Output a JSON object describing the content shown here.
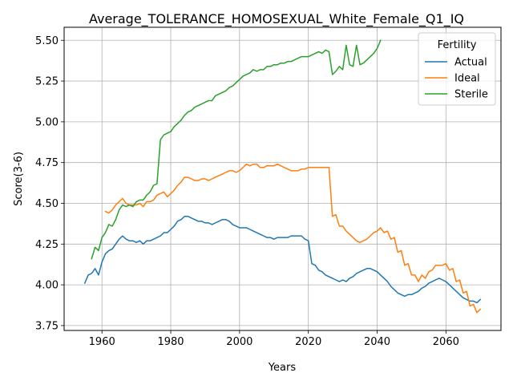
{
  "chart_data": {
    "type": "line",
    "title": "Average_TOLERANCE_HOMOSEXUAL_White_Female_Q1_IQ",
    "xlabel": "Years",
    "ylabel": "Score(3-6)",
    "xlim": [
      1949,
      2076
    ],
    "ylim": [
      3.72,
      5.58
    ],
    "xticks": [
      1960,
      1980,
      2000,
      2020,
      2040,
      2060
    ],
    "yticks": [
      3.75,
      4.0,
      4.25,
      4.5,
      4.75,
      5.0,
      5.25,
      5.5
    ],
    "ytick_labels": [
      "3.75",
      "4.00",
      "4.25",
      "4.50",
      "4.75",
      "5.00",
      "5.25",
      "5.50"
    ],
    "grid": true,
    "legend": {
      "title": "Fertility",
      "placement": "top-right"
    },
    "series": [
      {
        "name": "Actual",
        "color": "#1f77b4",
        "points": [
          [
            1955,
            4.01
          ],
          [
            1956,
            4.06
          ],
          [
            1957,
            4.07
          ],
          [
            1958,
            4.1
          ],
          [
            1959,
            4.06
          ],
          [
            1960,
            4.14
          ],
          [
            1961,
            4.19
          ],
          [
            1962,
            4.21
          ],
          [
            1963,
            4.22
          ],
          [
            1964,
            4.25
          ],
          [
            1965,
            4.28
          ],
          [
            1966,
            4.3
          ],
          [
            1967,
            4.28
          ],
          [
            1968,
            4.27
          ],
          [
            1969,
            4.27
          ],
          [
            1970,
            4.26
          ],
          [
            1971,
            4.27
          ],
          [
            1972,
            4.25
          ],
          [
            1973,
            4.27
          ],
          [
            1974,
            4.27
          ],
          [
            1975,
            4.28
          ],
          [
            1976,
            4.29
          ],
          [
            1977,
            4.3
          ],
          [
            1978,
            4.32
          ],
          [
            1979,
            4.32
          ],
          [
            1980,
            4.34
          ],
          [
            1981,
            4.36
          ],
          [
            1982,
            4.39
          ],
          [
            1983,
            4.4
          ],
          [
            1984,
            4.42
          ],
          [
            1985,
            4.42
          ],
          [
            1986,
            4.41
          ],
          [
            1987,
            4.4
          ],
          [
            1988,
            4.39
          ],
          [
            1989,
            4.39
          ],
          [
            1990,
            4.38
          ],
          [
            1991,
            4.38
          ],
          [
            1992,
            4.37
          ],
          [
            1993,
            4.38
          ],
          [
            1994,
            4.39
          ],
          [
            1995,
            4.4
          ],
          [
            1996,
            4.4
          ],
          [
            1997,
            4.39
          ],
          [
            1998,
            4.37
          ],
          [
            1999,
            4.36
          ],
          [
            2000,
            4.35
          ],
          [
            2001,
            4.35
          ],
          [
            2002,
            4.35
          ],
          [
            2003,
            4.34
          ],
          [
            2004,
            4.33
          ],
          [
            2005,
            4.32
          ],
          [
            2006,
            4.31
          ],
          [
            2007,
            4.3
          ],
          [
            2008,
            4.29
          ],
          [
            2009,
            4.29
          ],
          [
            2010,
            4.28
          ],
          [
            2011,
            4.29
          ],
          [
            2012,
            4.29
          ],
          [
            2013,
            4.29
          ],
          [
            2014,
            4.29
          ],
          [
            2015,
            4.3
          ],
          [
            2016,
            4.3
          ],
          [
            2017,
            4.3
          ],
          [
            2018,
            4.3
          ],
          [
            2019,
            4.28
          ],
          [
            2020,
            4.27
          ],
          [
            2021,
            4.13
          ],
          [
            2022,
            4.12
          ],
          [
            2023,
            4.09
          ],
          [
            2024,
            4.08
          ],
          [
            2025,
            4.06
          ],
          [
            2026,
            4.05
          ],
          [
            2027,
            4.04
          ],
          [
            2028,
            4.03
          ],
          [
            2029,
            4.02
          ],
          [
            2030,
            4.03
          ],
          [
            2031,
            4.02
          ],
          [
            2032,
            4.04
          ],
          [
            2033,
            4.05
          ],
          [
            2034,
            4.07
          ],
          [
            2035,
            4.08
          ],
          [
            2036,
            4.09
          ],
          [
            2037,
            4.1
          ],
          [
            2038,
            4.1
          ],
          [
            2039,
            4.09
          ],
          [
            2040,
            4.08
          ],
          [
            2041,
            4.06
          ],
          [
            2042,
            4.04
          ],
          [
            2043,
            4.02
          ],
          [
            2044,
            3.99
          ],
          [
            2045,
            3.97
          ],
          [
            2046,
            3.95
          ],
          [
            2047,
            3.94
          ],
          [
            2048,
            3.93
          ],
          [
            2049,
            3.94
          ],
          [
            2050,
            3.94
          ],
          [
            2051,
            3.95
          ],
          [
            2052,
            3.96
          ],
          [
            2053,
            3.98
          ],
          [
            2054,
            3.99
          ],
          [
            2055,
            4.01
          ],
          [
            2056,
            4.02
          ],
          [
            2057,
            4.03
          ],
          [
            2058,
            4.04
          ],
          [
            2059,
            4.03
          ],
          [
            2060,
            4.02
          ],
          [
            2061,
            4.0
          ],
          [
            2062,
            3.98
          ],
          [
            2063,
            3.96
          ],
          [
            2064,
            3.94
          ],
          [
            2065,
            3.92
          ],
          [
            2066,
            3.91
          ],
          [
            2067,
            3.9
          ],
          [
            2068,
            3.9
          ],
          [
            2069,
            3.89
          ],
          [
            2070,
            3.91
          ]
        ]
      },
      {
        "name": "Ideal",
        "color": "#ff7f0e",
        "points": [
          [
            1961,
            4.45
          ],
          [
            1962,
            4.44
          ],
          [
            1963,
            4.46
          ],
          [
            1964,
            4.49
          ],
          [
            1965,
            4.51
          ],
          [
            1966,
            4.53
          ],
          [
            1967,
            4.5
          ],
          [
            1968,
            4.49
          ],
          [
            1969,
            4.49
          ],
          [
            1970,
            4.49
          ],
          [
            1971,
            4.5
          ],
          [
            1972,
            4.48
          ],
          [
            1973,
            4.51
          ],
          [
            1974,
            4.51
          ],
          [
            1975,
            4.52
          ],
          [
            1976,
            4.55
          ],
          [
            1977,
            4.56
          ],
          [
            1978,
            4.57
          ],
          [
            1979,
            4.54
          ],
          [
            1980,
            4.56
          ],
          [
            1981,
            4.58
          ],
          [
            1982,
            4.61
          ],
          [
            1983,
            4.63
          ],
          [
            1984,
            4.66
          ],
          [
            1985,
            4.66
          ],
          [
            1986,
            4.65
          ],
          [
            1987,
            4.64
          ],
          [
            1988,
            4.64
          ],
          [
            1989,
            4.65
          ],
          [
            1990,
            4.65
          ],
          [
            1991,
            4.64
          ],
          [
            1992,
            4.65
          ],
          [
            1993,
            4.66
          ],
          [
            1994,
            4.67
          ],
          [
            1995,
            4.68
          ],
          [
            1996,
            4.69
          ],
          [
            1997,
            4.7
          ],
          [
            1998,
            4.7
          ],
          [
            1999,
            4.69
          ],
          [
            2000,
            4.7
          ],
          [
            2001,
            4.72
          ],
          [
            2002,
            4.74
          ],
          [
            2003,
            4.73
          ],
          [
            2004,
            4.74
          ],
          [
            2005,
            4.74
          ],
          [
            2006,
            4.72
          ],
          [
            2007,
            4.72
          ],
          [
            2008,
            4.73
          ],
          [
            2009,
            4.73
          ],
          [
            2010,
            4.73
          ],
          [
            2011,
            4.74
          ],
          [
            2012,
            4.73
          ],
          [
            2013,
            4.72
          ],
          [
            2014,
            4.71
          ],
          [
            2015,
            4.7
          ],
          [
            2016,
            4.7
          ],
          [
            2017,
            4.7
          ],
          [
            2018,
            4.71
          ],
          [
            2019,
            4.71
          ],
          [
            2020,
            4.72
          ],
          [
            2021,
            4.72
          ],
          [
            2022,
            4.72
          ],
          [
            2023,
            4.72
          ],
          [
            2024,
            4.72
          ],
          [
            2025,
            4.72
          ],
          [
            2026,
            4.72
          ],
          [
            2027,
            4.42
          ],
          [
            2028,
            4.43
          ],
          [
            2029,
            4.36
          ],
          [
            2030,
            4.36
          ],
          [
            2031,
            4.33
          ],
          [
            2032,
            4.31
          ],
          [
            2033,
            4.29
          ],
          [
            2034,
            4.27
          ],
          [
            2035,
            4.26
          ],
          [
            2036,
            4.27
          ],
          [
            2037,
            4.28
          ],
          [
            2038,
            4.3
          ],
          [
            2039,
            4.32
          ],
          [
            2040,
            4.33
          ],
          [
            2041,
            4.35
          ],
          [
            2042,
            4.32
          ],
          [
            2043,
            4.33
          ],
          [
            2044,
            4.28
          ],
          [
            2045,
            4.29
          ],
          [
            2046,
            4.2
          ],
          [
            2047,
            4.21
          ],
          [
            2048,
            4.12
          ],
          [
            2049,
            4.13
          ],
          [
            2050,
            4.06
          ],
          [
            2051,
            4.06
          ],
          [
            2052,
            4.02
          ],
          [
            2053,
            4.06
          ],
          [
            2054,
            4.04
          ],
          [
            2055,
            4.08
          ],
          [
            2056,
            4.09
          ],
          [
            2057,
            4.12
          ],
          [
            2058,
            4.12
          ],
          [
            2059,
            4.12
          ],
          [
            2060,
            4.13
          ],
          [
            2061,
            4.09
          ],
          [
            2062,
            4.1
          ],
          [
            2063,
            4.02
          ],
          [
            2064,
            4.03
          ],
          [
            2065,
            3.95
          ],
          [
            2066,
            3.96
          ],
          [
            2067,
            3.87
          ],
          [
            2068,
            3.88
          ],
          [
            2069,
            3.83
          ],
          [
            2070,
            3.85
          ]
        ]
      },
      {
        "name": "Sterile",
        "color": "#2ca02c",
        "points": [
          [
            1957,
            4.16
          ],
          [
            1958,
            4.23
          ],
          [
            1959,
            4.21
          ],
          [
            1960,
            4.29
          ],
          [
            1961,
            4.32
          ],
          [
            1962,
            4.37
          ],
          [
            1963,
            4.36
          ],
          [
            1964,
            4.4
          ],
          [
            1965,
            4.46
          ],
          [
            1966,
            4.49
          ],
          [
            1967,
            4.48
          ],
          [
            1968,
            4.49
          ],
          [
            1969,
            4.48
          ],
          [
            1970,
            4.51
          ],
          [
            1971,
            4.52
          ],
          [
            1972,
            4.52
          ],
          [
            1973,
            4.55
          ],
          [
            1974,
            4.57
          ],
          [
            1975,
            4.61
          ],
          [
            1976,
            4.62
          ],
          [
            1977,
            4.89
          ],
          [
            1978,
            4.92
          ],
          [
            1979,
            4.93
          ],
          [
            1980,
            4.94
          ],
          [
            1981,
            4.97
          ],
          [
            1982,
            4.99
          ],
          [
            1983,
            5.01
          ],
          [
            1984,
            5.04
          ],
          [
            1985,
            5.06
          ],
          [
            1986,
            5.07
          ],
          [
            1987,
            5.09
          ],
          [
            1988,
            5.1
          ],
          [
            1989,
            5.11
          ],
          [
            1990,
            5.12
          ],
          [
            1991,
            5.13
          ],
          [
            1992,
            5.13
          ],
          [
            1993,
            5.16
          ],
          [
            1994,
            5.17
          ],
          [
            1995,
            5.18
          ],
          [
            1996,
            5.19
          ],
          [
            1997,
            5.21
          ],
          [
            1998,
            5.22
          ],
          [
            1999,
            5.24
          ],
          [
            2000,
            5.26
          ],
          [
            2001,
            5.28
          ],
          [
            2002,
            5.29
          ],
          [
            2003,
            5.3
          ],
          [
            2004,
            5.32
          ],
          [
            2005,
            5.31
          ],
          [
            2006,
            5.32
          ],
          [
            2007,
            5.32
          ],
          [
            2008,
            5.34
          ],
          [
            2009,
            5.34
          ],
          [
            2010,
            5.35
          ],
          [
            2011,
            5.35
          ],
          [
            2012,
            5.36
          ],
          [
            2013,
            5.36
          ],
          [
            2014,
            5.37
          ],
          [
            2015,
            5.37
          ],
          [
            2016,
            5.38
          ],
          [
            2017,
            5.39
          ],
          [
            2018,
            5.4
          ],
          [
            2019,
            5.4
          ],
          [
            2020,
            5.4
          ],
          [
            2021,
            5.41
          ],
          [
            2022,
            5.42
          ],
          [
            2023,
            5.43
          ],
          [
            2024,
            5.42
          ],
          [
            2025,
            5.44
          ],
          [
            2026,
            5.43
          ],
          [
            2027,
            5.29
          ],
          [
            2028,
            5.31
          ],
          [
            2029,
            5.34
          ],
          [
            2030,
            5.32
          ],
          [
            2031,
            5.47
          ],
          [
            2032,
            5.35
          ],
          [
            2033,
            5.34
          ],
          [
            2034,
            5.47
          ],
          [
            2035,
            5.35
          ],
          [
            2036,
            5.36
          ],
          [
            2037,
            5.38
          ],
          [
            2038,
            5.4
          ],
          [
            2039,
            5.42
          ],
          [
            2040,
            5.45
          ],
          [
            2041,
            5.5
          ]
        ]
      }
    ]
  }
}
